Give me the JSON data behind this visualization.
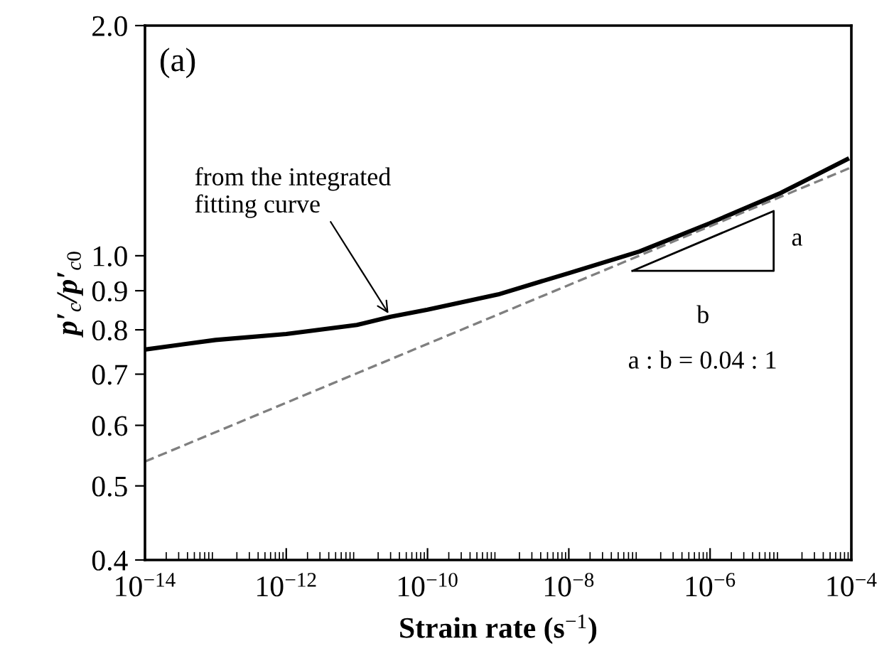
{
  "chart_data": {
    "type": "line",
    "log": "xy",
    "xlabel": "Strain rate (s$^{−1}$)",
    "ylabel": "p′$_{c}$/p′$_{c0}$",
    "xlim": [
      1e-14,
      0.0001
    ],
    "ylim": [
      0.4,
      2.0
    ],
    "xticks": [
      {
        "value": 1e-14,
        "label": "10$^{−14}$"
      },
      {
        "value": 1e-12,
        "label": "10$^{−12}$"
      },
      {
        "value": 1e-10,
        "label": "10$^{−10}$"
      },
      {
        "value": 1e-08,
        "label": "10$^{−8}$"
      },
      {
        "value": 1e-06,
        "label": "10$^{−6}$"
      },
      {
        "value": 0.0001,
        "label": "10$^{−4}$"
      }
    ],
    "yticks": [
      0.4,
      0.5,
      0.6,
      0.7,
      0.8,
      0.9,
      {
        "value": 1,
        "label": "1.0"
      },
      {
        "value": 2,
        "label": "2.0"
      }
    ],
    "grid": false,
    "legend": false,
    "marker": "none",
    "series": [
      {
        "color": "#000000",
        "line_style": "solid",
        "x": [
          1e-14,
          1e-13,
          1e-12,
          1e-11,
          3e-11,
          1e-10,
          1e-09,
          1e-08,
          1e-07,
          1e-06,
          1e-05,
          8.7e-05
        ],
        "values": [
          0.754,
          0.776,
          0.79,
          0.812,
          0.832,
          0.85,
          0.89,
          0.949,
          1.013,
          1.103,
          1.208,
          1.337
        ]
      },
      {
        "color": "#7f7f7f",
        "line_style": "dashed",
        "x": [
          1e-14,
          0.0001
        ],
        "values": [
          0.538,
          1.305
        ]
      }
    ],
    "annotations": [
      "(a)",
      {
        "text": "from the integrated\nfitting curve",
        "x": 3e-11,
        "y": 0.832
      },
      "a",
      "b",
      "a : b = 0.04 : 1"
    ]
  }
}
